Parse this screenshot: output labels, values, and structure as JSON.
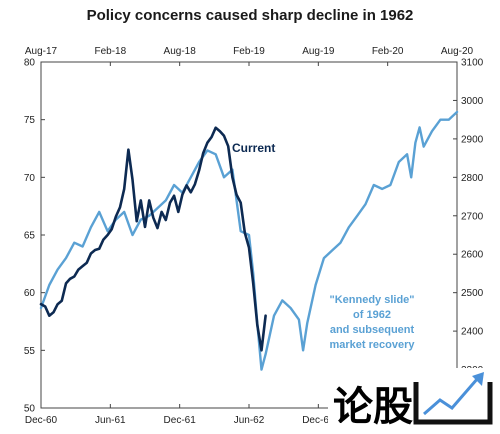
{
  "chart_data": {
    "type": "line",
    "title": "Policy concerns caused sharp decline in 1962",
    "top_axis": {
      "tick_labels": [
        "Aug-17",
        "Feb-18",
        "Aug-18",
        "Feb-19",
        "Aug-19",
        "Feb-20",
        "Aug-20"
      ]
    },
    "bottom_axis": {
      "tick_labels": [
        "Dec-60",
        "Jun-61",
        "Dec-61",
        "Jun-62",
        "Dec-62"
      ]
    },
    "left_axis": {
      "ylim": [
        50,
        80
      ],
      "tick_labels": [
        "50",
        "55",
        "60",
        "65",
        "70",
        "75",
        "80"
      ]
    },
    "right_axis": {
      "ylim": [
        2200,
        3100
      ],
      "tick_labels": [
        "2300",
        "2400",
        "2500",
        "2600",
        "2700",
        "2800",
        "2900",
        "3000",
        "3100"
      ]
    },
    "annotations": {
      "current": "Current",
      "kennedy": [
        "\"Kennedy slide\"",
        "of 1962",
        "and subsequent",
        "market recovery"
      ]
    },
    "series": [
      {
        "name": "Current",
        "axis": "left",
        "color": "#0d2a52",
        "points": [
          [
            0.0,
            59.0
          ],
          [
            0.01,
            58.8
          ],
          [
            0.02,
            58.0
          ],
          [
            0.03,
            58.3
          ],
          [
            0.04,
            59.0
          ],
          [
            0.05,
            59.3
          ],
          [
            0.06,
            60.8
          ],
          [
            0.07,
            61.2
          ],
          [
            0.08,
            61.4
          ],
          [
            0.09,
            62.0
          ],
          [
            0.1,
            62.3
          ],
          [
            0.11,
            62.6
          ],
          [
            0.12,
            63.4
          ],
          [
            0.13,
            63.7
          ],
          [
            0.14,
            63.8
          ],
          [
            0.15,
            64.6
          ],
          [
            0.16,
            65.0
          ],
          [
            0.17,
            65.5
          ],
          [
            0.18,
            66.6
          ],
          [
            0.19,
            67.4
          ],
          [
            0.2,
            69.0
          ],
          [
            0.21,
            72.4
          ],
          [
            0.22,
            69.8
          ],
          [
            0.23,
            66.2
          ],
          [
            0.24,
            68.0
          ],
          [
            0.25,
            65.7
          ],
          [
            0.26,
            68.0
          ],
          [
            0.27,
            66.5
          ],
          [
            0.28,
            65.6
          ],
          [
            0.29,
            67.0
          ],
          [
            0.3,
            66.3
          ],
          [
            0.31,
            67.8
          ],
          [
            0.32,
            68.4
          ],
          [
            0.33,
            67.0
          ],
          [
            0.34,
            68.5
          ],
          [
            0.35,
            69.3
          ],
          [
            0.36,
            68.7
          ],
          [
            0.37,
            69.4
          ],
          [
            0.38,
            70.6
          ],
          [
            0.39,
            72.1
          ],
          [
            0.4,
            73.0
          ],
          [
            0.41,
            73.5
          ],
          [
            0.42,
            74.3
          ],
          [
            0.43,
            74.0
          ],
          [
            0.44,
            73.6
          ],
          [
            0.45,
            72.7
          ],
          [
            0.46,
            70.0
          ],
          [
            0.47,
            68.5
          ],
          [
            0.48,
            67.8
          ],
          [
            0.49,
            65.2
          ],
          [
            0.5,
            63.9
          ],
          [
            0.51,
            60.8
          ],
          [
            0.52,
            57.2
          ],
          [
            0.53,
            55.0
          ],
          [
            0.54,
            58.0
          ]
        ]
      },
      {
        "name": "\"Kennedy slide\" of 1962 and subsequent market recovery",
        "axis": "right",
        "color": "#5aa1d4",
        "points": [
          [
            0.0,
            2460
          ],
          [
            0.02,
            2520
          ],
          [
            0.04,
            2560
          ],
          [
            0.06,
            2590
          ],
          [
            0.08,
            2630
          ],
          [
            0.1,
            2620
          ],
          [
            0.12,
            2670
          ],
          [
            0.14,
            2710
          ],
          [
            0.16,
            2660
          ],
          [
            0.18,
            2690
          ],
          [
            0.2,
            2710
          ],
          [
            0.22,
            2650
          ],
          [
            0.24,
            2690
          ],
          [
            0.26,
            2700
          ],
          [
            0.28,
            2720
          ],
          [
            0.3,
            2740
          ],
          [
            0.32,
            2780
          ],
          [
            0.34,
            2760
          ],
          [
            0.36,
            2800
          ],
          [
            0.38,
            2840
          ],
          [
            0.4,
            2870
          ],
          [
            0.42,
            2860
          ],
          [
            0.44,
            2800
          ],
          [
            0.46,
            2820
          ],
          [
            0.48,
            2660
          ],
          [
            0.5,
            2650
          ],
          [
            0.51,
            2550
          ],
          [
            0.52,
            2420
          ],
          [
            0.53,
            2300
          ],
          [
            0.54,
            2340
          ],
          [
            0.55,
            2390
          ],
          [
            0.56,
            2440
          ],
          [
            0.58,
            2480
          ],
          [
            0.6,
            2460
          ],
          [
            0.62,
            2430
          ],
          [
            0.63,
            2350
          ],
          [
            0.64,
            2420
          ],
          [
            0.66,
            2520
          ],
          [
            0.68,
            2590
          ],
          [
            0.7,
            2610
          ],
          [
            0.72,
            2630
          ],
          [
            0.74,
            2670
          ],
          [
            0.76,
            2700
          ],
          [
            0.78,
            2730
          ],
          [
            0.8,
            2780
          ],
          [
            0.82,
            2770
          ],
          [
            0.84,
            2780
          ],
          [
            0.86,
            2840
          ],
          [
            0.88,
            2860
          ],
          [
            0.89,
            2800
          ],
          [
            0.9,
            2890
          ],
          [
            0.91,
            2930
          ],
          [
            0.92,
            2880
          ],
          [
            0.94,
            2920
          ],
          [
            0.96,
            2950
          ],
          [
            0.98,
            2950
          ],
          [
            1.0,
            2970
          ]
        ]
      }
    ]
  }
}
